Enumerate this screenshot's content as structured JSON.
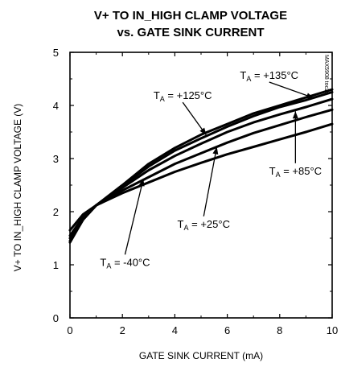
{
  "chart_data": {
    "type": "line",
    "title_line1": "V+ TO IN_HIGH CLAMP VOLTAGE",
    "title_line2": "vs. GATE SINK CURRENT",
    "xlabel": "GATE SINK CURRENT (mA)",
    "ylabel": "V+ TO IN_HIGH CLAMP VOLTAGE (V)",
    "xlim": [
      0,
      10
    ],
    "ylim": [
      0,
      5
    ],
    "xticks": [
      "0",
      "2",
      "4",
      "6",
      "8",
      "10"
    ],
    "yticks": [
      "0",
      "1",
      "2",
      "3",
      "4",
      "5"
    ],
    "grid": false,
    "legend": "none",
    "doc_code": "MAX5908 toc29",
    "series": [
      {
        "name": "TA = +135°C",
        "x": [
          0,
          0.5,
          1,
          2,
          3,
          4,
          5,
          6,
          7,
          8,
          9,
          10
        ],
        "y": [
          1.42,
          1.85,
          2.12,
          2.5,
          2.9,
          3.2,
          3.45,
          3.65,
          3.85,
          4.0,
          4.15,
          4.3
        ]
      },
      {
        "name": "TA = +125°C",
        "x": [
          0,
          0.5,
          1,
          2,
          3,
          4,
          5,
          6,
          7,
          8,
          9,
          10
        ],
        "y": [
          1.45,
          1.85,
          2.12,
          2.48,
          2.85,
          3.15,
          3.38,
          3.6,
          3.8,
          3.97,
          4.1,
          4.25
        ]
      },
      {
        "name": "TA = +85°C",
        "x": [
          0,
          0.5,
          1,
          2,
          3,
          4,
          5,
          6,
          7,
          8,
          9,
          10
        ],
        "y": [
          1.5,
          1.87,
          2.12,
          2.45,
          2.78,
          3.05,
          3.28,
          3.5,
          3.68,
          3.83,
          3.97,
          4.12
        ]
      },
      {
        "name": "TA = +25°C",
        "x": [
          0,
          0.5,
          1,
          2,
          3,
          4,
          5,
          6,
          7,
          8,
          9,
          10
        ],
        "y": [
          1.55,
          1.9,
          2.12,
          2.4,
          2.65,
          2.9,
          3.1,
          3.3,
          3.48,
          3.63,
          3.78,
          3.92
        ]
      },
      {
        "name": "TA = -40°C",
        "x": [
          0,
          0.5,
          1,
          2,
          3,
          4,
          5,
          6,
          7,
          8,
          9,
          10
        ],
        "y": [
          1.65,
          1.95,
          2.12,
          2.35,
          2.55,
          2.75,
          2.92,
          3.08,
          3.22,
          3.36,
          3.5,
          3.65
        ]
      }
    ],
    "annotations": [
      {
        "series": 0,
        "main": "T",
        "sub": "A",
        "rest": " = +135°C",
        "x": 7.6,
        "y": 4.5,
        "px": 9.3,
        "py": 4.14,
        "anchor": "middle"
      },
      {
        "series": 1,
        "main": "T",
        "sub": "A",
        "rest": " = +125°C",
        "x": 4.3,
        "y": 4.12,
        "px": 5.2,
        "py": 3.44,
        "anchor": "middle"
      },
      {
        "series": 2,
        "main": "T",
        "sub": "A",
        "rest": " = +85°C",
        "x": 8.6,
        "y": 2.7,
        "px": 8.6,
        "py": 3.89,
        "anchor": "middle"
      },
      {
        "series": 3,
        "main": "T",
        "sub": "A",
        "rest": " = +25°C",
        "x": 5.1,
        "y": 1.7,
        "px": 5.6,
        "py": 3.22,
        "anchor": "middle"
      },
      {
        "series": 4,
        "main": "T",
        "sub": "A",
        "rest": " = -40°C",
        "x": 2.1,
        "y": 0.98,
        "px": 2.8,
        "py": 2.62,
        "anchor": "middle"
      }
    ]
  }
}
